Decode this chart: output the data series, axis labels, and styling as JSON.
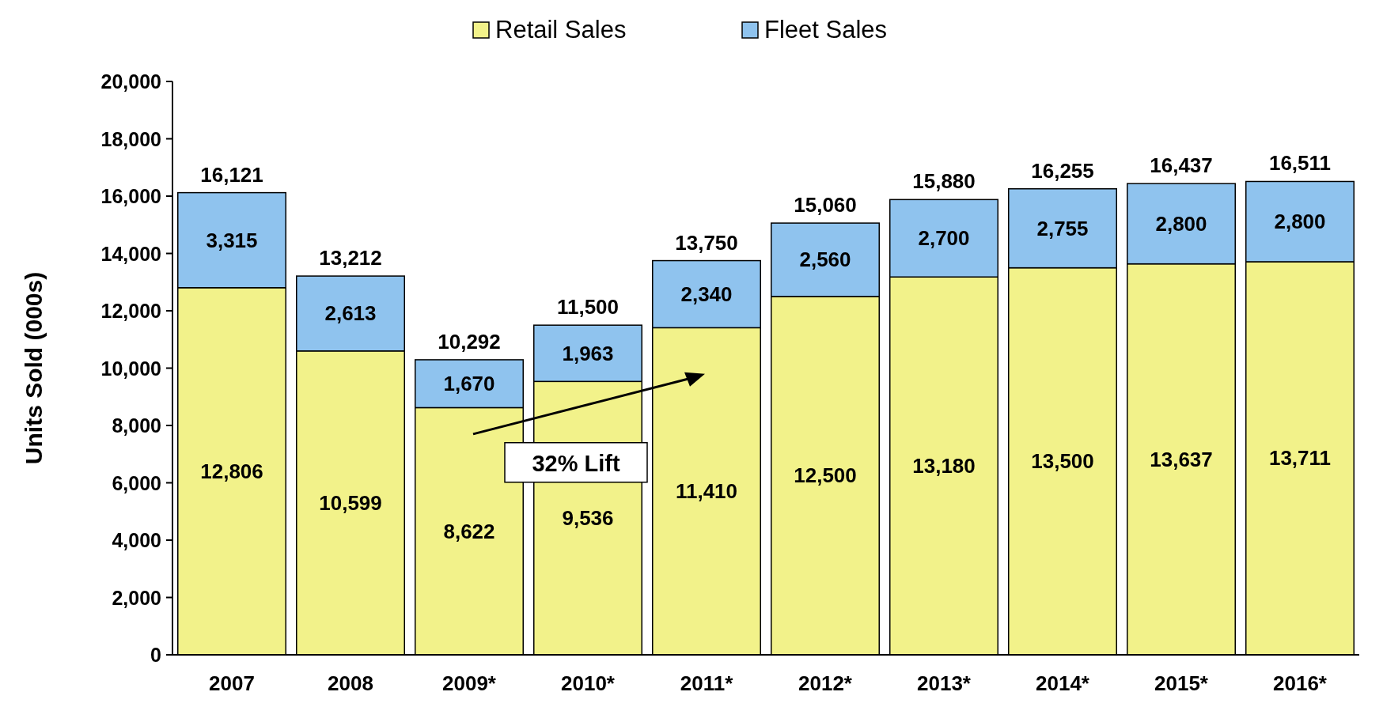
{
  "chart_data": {
    "type": "bar",
    "stacked": true,
    "ylabel": "Units Sold (000s)",
    "categories": [
      "2007",
      "2008",
      "2009*",
      "2010*",
      "2011*",
      "2012*",
      "2013*",
      "2014*",
      "2015*",
      "2016*"
    ],
    "series": [
      {
        "name": "Retail Sales",
        "color": "#f2f28a",
        "values": [
          12806,
          10599,
          8622,
          9536,
          11410,
          12500,
          13180,
          13500,
          13637,
          13711
        ],
        "value_labels": [
          "12,806",
          "10,599",
          "8,622",
          "9,536",
          "11,410",
          "12,500",
          "13,180",
          "13,500",
          "13,637",
          "13,711"
        ]
      },
      {
        "name": "Fleet Sales",
        "color": "#8fc3ee",
        "values": [
          3315,
          2613,
          1670,
          1963,
          2340,
          2560,
          2700,
          2755,
          2800,
          2800
        ],
        "value_labels": [
          "3,315",
          "2,613",
          "1,670",
          "1,963",
          "2,340",
          "2,560",
          "2,700",
          "2,755",
          "2,800",
          "2,800"
        ]
      }
    ],
    "totals": [
      "16,121",
      "13,212",
      "10,292",
      "11,500",
      "13,750",
      "15,060",
      "15,880",
      "16,255",
      "16,437",
      "16,511"
    ],
    "ylim": [
      0,
      20000
    ],
    "yticks": [
      {
        "value": 0,
        "label": "0"
      },
      {
        "value": 2000,
        "label": "2,000"
      },
      {
        "value": 4000,
        "label": "4,000"
      },
      {
        "value": 6000,
        "label": "6,000"
      },
      {
        "value": 8000,
        "label": "8,000"
      },
      {
        "value": 10000,
        "label": "10,000"
      },
      {
        "value": 12000,
        "label": "12,000"
      },
      {
        "value": 14000,
        "label": "14,000"
      },
      {
        "value": 16000,
        "label": "16,000"
      },
      {
        "value": 18000,
        "label": "18,000"
      },
      {
        "value": 20000,
        "label": "20,000"
      }
    ],
    "legend": "top",
    "grid": false,
    "annotations": [
      "32% Lift"
    ]
  }
}
